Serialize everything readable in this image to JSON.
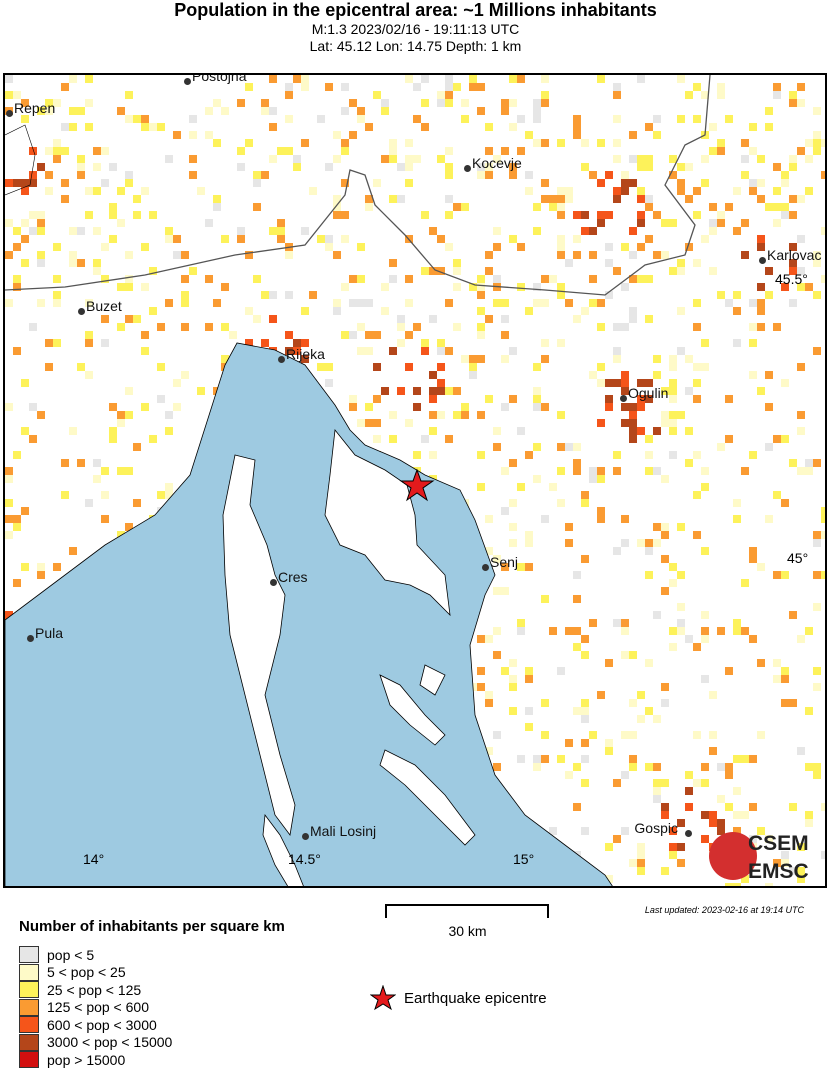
{
  "header": {
    "title": "Population in the epicentral area: ~1 Millions inhabitants",
    "subtitle": "M:1.3 2023/02/16 - 19:11:13 UTC",
    "location": "Lat: 45.12 Lon: 14.75 Depth: 1 km"
  },
  "map": {
    "cities": [
      {
        "name": "Postojna"
      },
      {
        "name": "Repen"
      },
      {
        "name": "Kocevje"
      },
      {
        "name": "Karlovac"
      },
      {
        "name": "Buzet"
      },
      {
        "name": "Rijeka"
      },
      {
        "name": "Ogulin"
      },
      {
        "name": "Senj"
      },
      {
        "name": "Cres"
      },
      {
        "name": "Pula"
      },
      {
        "name": "Mali Losinj"
      },
      {
        "name": "Gospic"
      }
    ],
    "lon_ticks": [
      "14°",
      "14.5°",
      "15°"
    ],
    "lat_ticks": [
      "45°",
      "45.5°"
    ],
    "colors": {
      "sea": "#9ecae1",
      "land": "#ffffff",
      "epicentre": "#e41a1c"
    }
  },
  "epicentre": {
    "lat": 45.12,
    "lon": 14.75,
    "legend_label": "Earthquake epicentre",
    "icon": "star-icon"
  },
  "scale": {
    "label": "30 km"
  },
  "updated": "Last updated: 2023-02-16 at 19:14 UTC",
  "legend": {
    "title": "Number of inhabitants per square km",
    "items": [
      {
        "label": "pop < 5",
        "color": "#e6e6e6"
      },
      {
        "label": "5 < pop < 25",
        "color": "#fefac8"
      },
      {
        "label": "25 < pop < 125",
        "color": "#fdf25a"
      },
      {
        "label": "125 < pop < 600",
        "color": "#fa9b32"
      },
      {
        "label": "600 < pop < 3000",
        "color": "#f5551a"
      },
      {
        "label": "3000 < pop < 15000",
        "color": "#b4461a"
      },
      {
        "label": "pop > 15000",
        "color": "#d20f0f"
      }
    ]
  },
  "logo": {
    "text": [
      "CSEM",
      "EMSC"
    ]
  }
}
